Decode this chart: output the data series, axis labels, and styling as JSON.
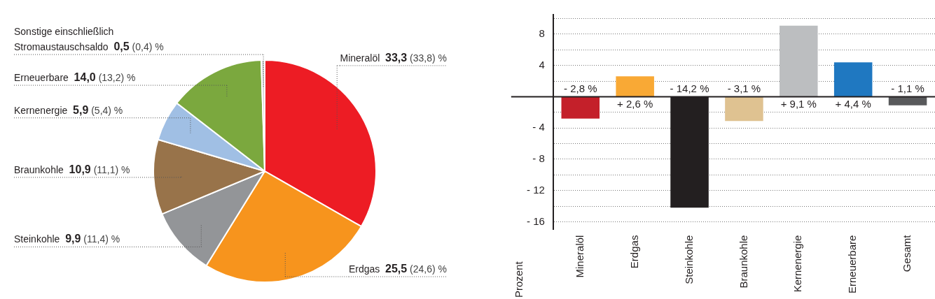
{
  "chart_data": [
    {
      "type": "pie",
      "categories": [
        "Mineralöl",
        "Erdgas",
        "Steinkohle",
        "Braunkohle",
        "Kernenergie",
        "Erneuerbare",
        "Sonstige einschließlich\nStromaustauschsaldo"
      ],
      "values": [
        33.3,
        25.5,
        9.9,
        10.9,
        5.9,
        14.0,
        0.5
      ],
      "colors": [
        "#ed1c24",
        "#f7941d",
        "#939598",
        "#98734a",
        "#a0bfe4",
        "#7ba83e",
        "#d1d3d4"
      ],
      "value_labels": [
        "33,3 (33,8) %",
        "25,5 (24,6) %",
        "9,9 (11,4) %",
        "10,9 (11,1) %",
        "5,9 (5,4) %",
        "14,0 (13,2) %",
        "0,5 (0,4) %"
      ]
    },
    {
      "type": "bar",
      "categories": [
        "Mineralöl",
        "Erdgas",
        "Steinkohle",
        "Braunkohle",
        "Kernenergie",
        "Erneuerbare",
        "Gesamt"
      ],
      "values": [
        -2.8,
        2.6,
        -14.2,
        -3.1,
        9.1,
        4.4,
        -1.1
      ],
      "colors": [
        "#c4202a",
        "#f9a935",
        "#231f20",
        "#dfc291",
        "#bcbec0",
        "#1f78c1",
        "#58595b"
      ],
      "value_labels": [
        "- 2,8 %",
        "+ 2,6 %",
        "- 14,2 %",
        "- 3,1 %",
        "+ 9,1 %",
        "+ 4,4 %",
        "- 1,1 %"
      ],
      "ylabel": "Prozent",
      "ylim": [
        -17,
        10.5
      ],
      "yticks": [
        {
          "value": 10,
          "label": null
        },
        {
          "value": 8,
          "label": "8"
        },
        {
          "value": 6,
          "label": null
        },
        {
          "value": 4,
          "label": "4"
        },
        {
          "value": 2,
          "label": null
        },
        {
          "value": 0,
          "label": null
        },
        {
          "value": -2,
          "label": null
        },
        {
          "value": -4,
          "label": "- 4"
        },
        {
          "value": -6,
          "label": null
        },
        {
          "value": -8,
          "label": "- 8"
        },
        {
          "value": -10,
          "label": null
        },
        {
          "value": -12,
          "label": "- 12"
        },
        {
          "value": -14,
          "label": null
        },
        {
          "value": -16,
          "label": "- 16"
        }
      ],
      "grid": "y"
    }
  ]
}
